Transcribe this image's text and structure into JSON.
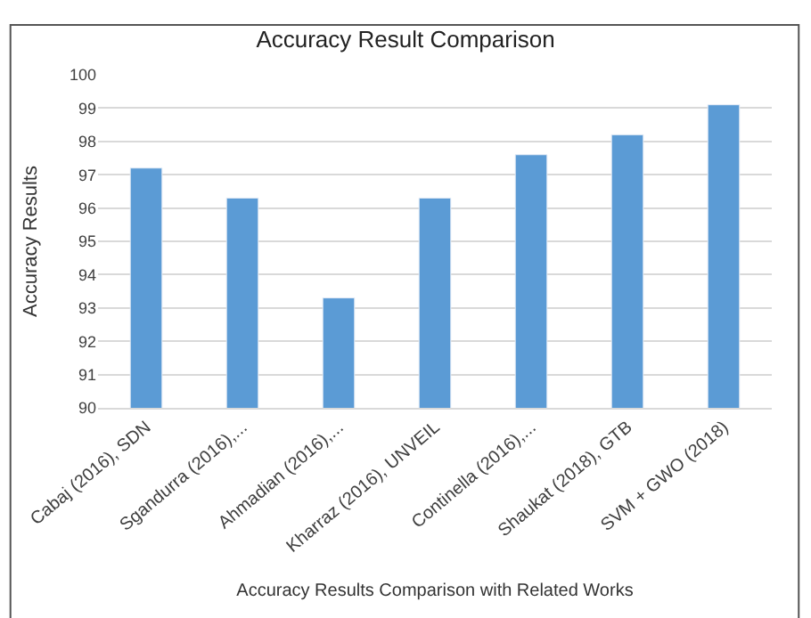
{
  "chart_data": {
    "type": "bar",
    "title": "Accuracy Result Comparison",
    "xlabel": "Accuracy Results Comparison with Related Works",
    "ylabel": "Accuracy Results",
    "categories": [
      "Cabaj (2016), SDN",
      "Sgandurra (2016),...",
      "Ahmadian (2016),...",
      "Kharraz (2016), UNVEIL",
      "Continella (2016),...",
      "Shaukat (2018), GTB",
      "SVM + GWO (2018)"
    ],
    "values": [
      97.2,
      96.3,
      93.3,
      96.3,
      97.6,
      98.2,
      99.1
    ],
    "color": "#5b9bd5",
    "ylim": [
      90,
      100
    ],
    "yticks": [
      90,
      91,
      92,
      93,
      94,
      95,
      96,
      97,
      98,
      99,
      100
    ],
    "grid": "y"
  }
}
